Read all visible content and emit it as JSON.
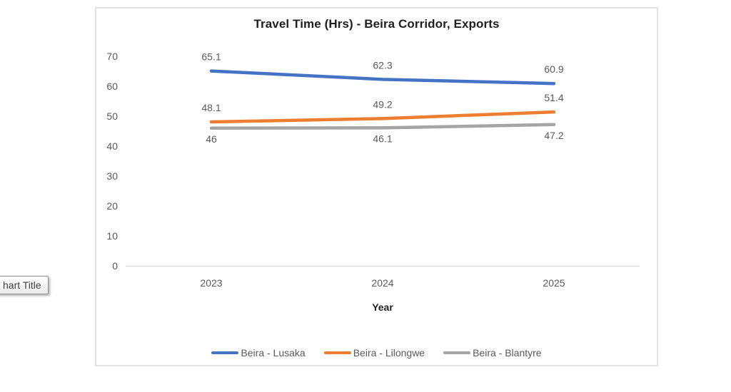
{
  "tooltip": {
    "text": "hart Title"
  },
  "chart_data": {
    "type": "line",
    "title": "Travel Time (Hrs) - Beira Corridor, Exports",
    "xlabel": "Year",
    "ylabel": "",
    "categories": [
      "2023",
      "2024",
      "2025"
    ],
    "series": [
      {
        "name": "Beira - Lusaka",
        "color": "#4472C4",
        "values": [
          65.1,
          62.3,
          60.9
        ],
        "label_position": "above"
      },
      {
        "name": "Beira - Lilongwe",
        "color": "#ED7D31",
        "values": [
          48.1,
          49.2,
          51.4
        ],
        "label_position": "above"
      },
      {
        "name": "Beira - Blantyre",
        "color": "#A5A5A5",
        "values": [
          46,
          46.1,
          47.2
        ],
        "label_position": "below"
      }
    ],
    "y_ticks": [
      0,
      10,
      20,
      30,
      40,
      50,
      60,
      70
    ],
    "ylim": [
      0,
      70
    ],
    "data_labels": true,
    "gridlines": "none",
    "legend_position": "bottom",
    "colors": {
      "axis_line": "#D9D9D9",
      "tick_label": "#595959",
      "data_label": "#595959",
      "title_text": "#1f1f1f"
    }
  }
}
